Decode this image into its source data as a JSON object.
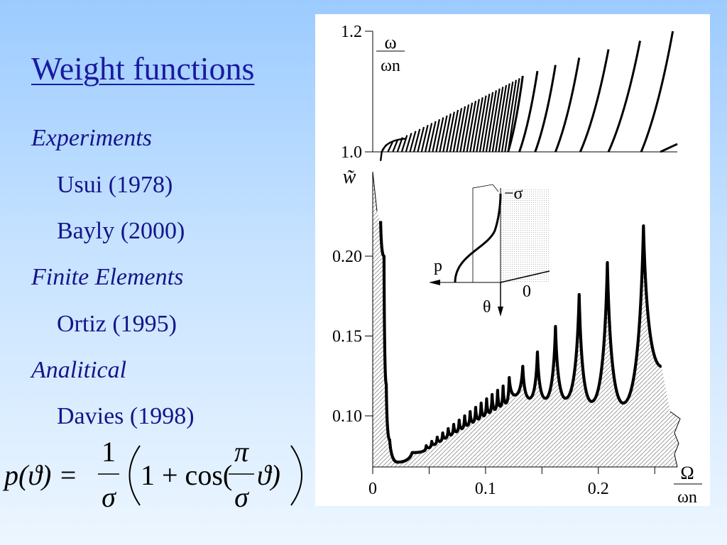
{
  "slide": {
    "title": "Weight functions",
    "list": [
      {
        "text": "Experiments",
        "kind": "category"
      },
      {
        "text": "Usui (1978)",
        "kind": "item"
      },
      {
        "text": "Bayly (2000)",
        "kind": "item"
      },
      {
        "text": "Finite Elements",
        "kind": "category"
      },
      {
        "text": "Ortiz (1995)",
        "kind": "item"
      },
      {
        "text": "Analitical",
        "kind": "category"
      },
      {
        "text": "Davies (1998)",
        "kind": "item"
      }
    ],
    "formula": {
      "lhs": "p(ϑ) =",
      "num1": "1",
      "den1": "σ",
      "one_plus_cos": "1 + cos(",
      "num2": "π",
      "den2": "σ",
      "theta_close": "ϑ)"
    }
  },
  "chart_data": [
    {
      "type": "line",
      "panel": "top",
      "ylabel": {
        "num": "ω",
        "den": "ωn"
      },
      "yticks": [
        "1.2",
        "1.0"
      ],
      "ylim": [
        0.985,
        1.2
      ],
      "xlim": [
        0,
        0.27
      ],
      "branch_tops": [
        {
          "x0": 0.12,
          "x": 0.133,
          "y": 1.126
        },
        {
          "x0": 0.13,
          "x": 0.146,
          "y": 1.134
        },
        {
          "x0": 0.144,
          "x": 0.162,
          "y": 1.144
        },
        {
          "x0": 0.162,
          "x": 0.183,
          "y": 1.156
        },
        {
          "x0": 0.184,
          "x": 0.209,
          "y": 1.17
        },
        {
          "x0": 0.209,
          "x": 0.237,
          "y": 1.184
        },
        {
          "x0": 0.238,
          "x": 0.266,
          "y": 1.2
        }
      ],
      "partial_branch": {
        "x0": 0.255,
        "x": 0.27,
        "y": 1.013
      },
      "dense_region": [
        0.008,
        0.12
      ]
    },
    {
      "type": "area",
      "panel": "bottom",
      "ylabel": "w̃",
      "xlabel": {
        "num": "Ω",
        "den": "ωn"
      },
      "yticks": [
        "0.20",
        "0.15",
        "0.10"
      ],
      "xticks": [
        "0",
        "0.1",
        "0.2"
      ],
      "xlim": [
        0,
        0.27
      ],
      "ylim": [
        0.068,
        0.23
      ],
      "minimum": {
        "x": 0.022,
        "y": 0.071
      },
      "peaks": [
        {
          "x": 0.121,
          "y": 0.124
        },
        {
          "x": 0.133,
          "y": 0.131
        },
        {
          "x": 0.146,
          "y": 0.14
        },
        {
          "x": 0.162,
          "y": 0.156
        },
        {
          "x": 0.183,
          "y": 0.176
        },
        {
          "x": 0.208,
          "y": 0.196
        },
        {
          "x": 0.24,
          "y": 0.219
        }
      ],
      "valleys": [
        {
          "x": 0.126,
          "y": 0.113
        },
        {
          "x": 0.139,
          "y": 0.111
        },
        {
          "x": 0.153,
          "y": 0.111
        },
        {
          "x": 0.171,
          "y": 0.111
        },
        {
          "x": 0.194,
          "y": 0.109
        },
        {
          "x": 0.222,
          "y": 0.108
        }
      ],
      "end_point": {
        "x": 0.256,
        "y": 0.131
      },
      "inset": {
        "labels": {
          "sigma": "−σ",
          "p": "p",
          "zero": "0",
          "theta": "θ"
        }
      }
    }
  ]
}
